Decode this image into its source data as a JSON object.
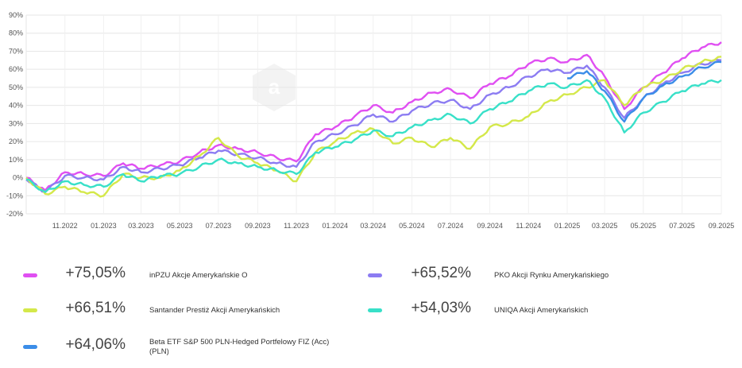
{
  "chart_data": {
    "type": "line",
    "ylim": [
      -20,
      90
    ],
    "yticks": [
      "-20%",
      "-10%",
      "0%",
      "10%",
      "20%",
      "30%",
      "40%",
      "50%",
      "60%",
      "70%",
      "80%",
      "90%"
    ],
    "xlim": [
      "2022-09-01",
      "2025-09-01"
    ],
    "xticks": [
      "11.2022",
      "01.2023",
      "03.2023",
      "05.2023",
      "07.2023",
      "09.2023",
      "11.2023",
      "01.2024",
      "03.2024",
      "05.2024",
      "07.2024",
      "09.2024",
      "11.2024",
      "01.2025",
      "03.2025",
      "05.2025",
      "07.2025",
      "09.2025"
    ],
    "grid": true,
    "watermark": "a",
    "series": [
      {
        "name": "inPZU Akcje Amerykańskie O",
        "return_label": "+75,05%",
        "color": "#e04ff2",
        "x": [
          "2022-09-01",
          "2022-10-01",
          "2022-11-01",
          "2022-12-01",
          "2023-01-01",
          "2023-02-01",
          "2023-03-01",
          "2023-04-01",
          "2023-05-01",
          "2023-06-01",
          "2023-07-01",
          "2023-08-01",
          "2023-09-01",
          "2023-10-01",
          "2023-11-01",
          "2023-12-01",
          "2024-01-01",
          "2024-02-01",
          "2024-03-01",
          "2024-04-01",
          "2024-05-01",
          "2024-06-01",
          "2024-07-01",
          "2024-08-01",
          "2024-09-01",
          "2024-10-01",
          "2024-11-01",
          "2024-12-01",
          "2025-01-01",
          "2025-02-01",
          "2025-03-01",
          "2025-04-01",
          "2025-05-01",
          "2025-06-01",
          "2025-07-01",
          "2025-08-01",
          "2025-09-01"
        ],
        "y": [
          0,
          -7,
          3,
          2,
          1,
          8,
          5,
          7,
          9,
          14,
          18,
          16,
          14,
          11,
          9,
          24,
          28,
          34,
          40,
          36,
          42,
          47,
          49,
          44,
          52,
          56,
          63,
          66,
          64,
          68,
          56,
          38,
          50,
          58,
          66,
          72,
          75
        ]
      },
      {
        "name": "PKO Akcji Rynku Amerykańskiego",
        "return_label": "+65,52%",
        "color": "#8c7cf2",
        "x": [
          "2022-09-01",
          "2022-10-01",
          "2022-11-01",
          "2022-12-01",
          "2023-01-01",
          "2023-02-01",
          "2023-03-01",
          "2023-04-01",
          "2023-05-01",
          "2023-06-01",
          "2023-07-01",
          "2023-08-01",
          "2023-09-01",
          "2023-10-01",
          "2023-11-01",
          "2023-12-01",
          "2024-01-01",
          "2024-02-01",
          "2024-03-01",
          "2024-04-01",
          "2024-05-01",
          "2024-06-01",
          "2024-07-01",
          "2024-08-01",
          "2024-09-01",
          "2024-10-01",
          "2024-11-01",
          "2024-12-01",
          "2025-01-01",
          "2025-02-01",
          "2025-03-01",
          "2025-04-01",
          "2025-05-01",
          "2025-06-01",
          "2025-07-01",
          "2025-08-01",
          "2025-09-01"
        ],
        "y": [
          -1,
          -8,
          1,
          0,
          -1,
          6,
          3,
          5,
          7,
          11,
          15,
          13,
          11,
          8,
          6,
          20,
          24,
          29,
          35,
          31,
          37,
          41,
          43,
          38,
          46,
          50,
          56,
          60,
          58,
          62,
          50,
          33,
          44,
          52,
          58,
          63,
          65
        ]
      },
      {
        "name": "Santander Prestiż Akcji Amerykańskich",
        "return_label": "+66,51%",
        "color": "#d4e84a",
        "x": [
          "2022-09-01",
          "2022-10-01",
          "2022-11-01",
          "2022-12-01",
          "2023-01-01",
          "2023-02-01",
          "2023-03-01",
          "2023-04-01",
          "2023-05-01",
          "2023-06-01",
          "2023-07-01",
          "2023-08-01",
          "2023-09-01",
          "2023-10-01",
          "2023-11-01",
          "2023-12-01",
          "2024-01-01",
          "2024-02-01",
          "2024-03-01",
          "2024-04-01",
          "2024-05-01",
          "2024-06-01",
          "2024-07-01",
          "2024-08-01",
          "2024-09-01",
          "2024-10-01",
          "2024-11-01",
          "2024-12-01",
          "2025-01-01",
          "2025-02-01",
          "2025-03-01",
          "2025-04-01",
          "2025-05-01",
          "2025-06-01",
          "2025-07-01",
          "2025-08-01",
          "2025-09-01"
        ],
        "y": [
          0,
          -9,
          -5,
          -8,
          -10,
          2,
          0,
          0,
          4,
          12,
          22,
          12,
          8,
          4,
          -2,
          14,
          20,
          25,
          27,
          19,
          22,
          17,
          22,
          16,
          28,
          30,
          34,
          42,
          46,
          50,
          54,
          40,
          50,
          54,
          60,
          64,
          67
        ]
      },
      {
        "name": "UNIQA Akcji Amerykańskich",
        "return_label": "+54,03%",
        "color": "#38e0c8",
        "x": [
          "2022-09-01",
          "2022-10-01",
          "2022-11-01",
          "2022-12-01",
          "2023-01-01",
          "2023-02-01",
          "2023-03-01",
          "2023-04-01",
          "2023-05-01",
          "2023-06-01",
          "2023-07-01",
          "2023-08-01",
          "2023-09-01",
          "2023-10-01",
          "2023-11-01",
          "2023-12-01",
          "2024-01-01",
          "2024-02-01",
          "2024-03-01",
          "2024-04-01",
          "2024-05-01",
          "2024-06-01",
          "2024-07-01",
          "2024-08-01",
          "2024-09-01",
          "2024-10-01",
          "2024-11-01",
          "2024-12-01",
          "2025-01-01",
          "2025-02-01",
          "2025-03-01",
          "2025-04-01",
          "2025-05-01",
          "2025-06-01",
          "2025-07-01",
          "2025-08-01",
          "2025-09-01"
        ],
        "y": [
          -1,
          -8,
          -2,
          -4,
          -5,
          2,
          -2,
          1,
          2,
          6,
          10,
          8,
          6,
          4,
          2,
          14,
          17,
          21,
          26,
          23,
          28,
          32,
          35,
          30,
          38,
          42,
          48,
          52,
          50,
          54,
          44,
          25,
          36,
          42,
          48,
          52,
          54
        ]
      },
      {
        "name": "Beta ETF S&P 500 PLN-Hedged Portfelowy FIZ (Acc) (PLN)",
        "return_label": "+64,06%",
        "color": "#3b8de8",
        "x": [
          "2025-01-01",
          "2025-02-01",
          "2025-03-01",
          "2025-04-01",
          "2025-05-01",
          "2025-06-01",
          "2025-07-01",
          "2025-08-01",
          "2025-09-01"
        ],
        "y": [
          55,
          59,
          48,
          31,
          44,
          51,
          56,
          61,
          64
        ]
      }
    ]
  }
}
